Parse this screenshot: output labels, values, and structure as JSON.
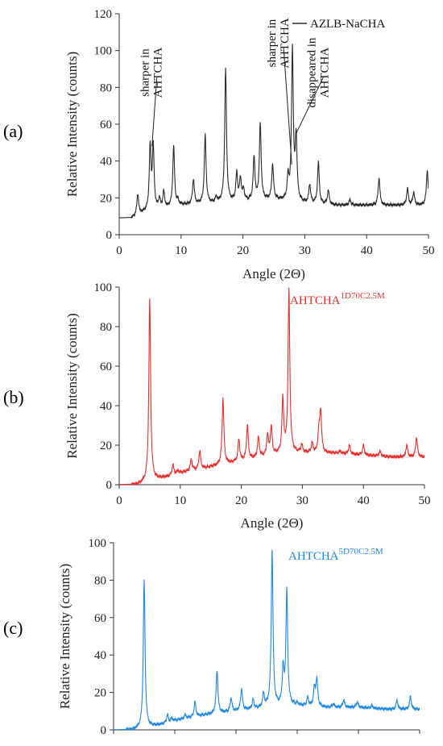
{
  "panels": [
    {
      "panel_label": "(a)",
      "color": "#2b2b2b",
      "legend_text": "AZLB-NaCHA",
      "legend_super": "",
      "legend_style": "line",
      "xlabel": "Angle (2Θ)",
      "ylabel": "Relative Intensity (counts)",
      "show_xticks": true,
      "annotations": [
        {
          "lines": [
            "sharper in",
            "AHTCHA"
          ],
          "x": 5.3,
          "y": 88,
          "target": [
            5.3,
            48
          ]
        },
        {
          "lines": [
            "sharper in",
            "AHTCHA"
          ],
          "x": 25.8,
          "y": 104,
          "target": [
            27.9,
            38
          ]
        },
        {
          "lines": [
            "disappeared in",
            "AHTCHA"
          ],
          "x": 32.2,
          "y": 88,
          "target": [
            28.6,
            55
          ]
        }
      ]
    },
    {
      "panel_label": "(b)",
      "color": "#ee2a2a",
      "legend_text": "AHTCHA",
      "legend_super": "1D70C2.5M",
      "legend_style": "text",
      "xlabel": "Angle (2Θ)",
      "ylabel": "Relative Intensity (counts)",
      "show_xticks": true,
      "annotations": []
    },
    {
      "panel_label": "(c)",
      "color": "#1e88e5",
      "legend_text": "AHTCHA",
      "legend_super": "5D70C2.5M",
      "legend_style": "text",
      "xlabel": "",
      "ylabel": "Relative Intensity (counts)",
      "show_xticks": false,
      "annotations": []
    }
  ],
  "chart_data": [
    {
      "type": "line",
      "title": "",
      "xlabel": "Angle (2Θ)",
      "ylabel": "Relative Intensity (counts)",
      "xlim": [
        0,
        50
      ],
      "ylim": [
        0,
        120
      ],
      "xticks": [
        0,
        10,
        20,
        30,
        40,
        50
      ],
      "yticks": [
        0,
        20,
        40,
        60,
        80,
        100,
        120
      ],
      "grid": false,
      "legend": "top-right",
      "series": [
        {
          "name": "AZLB-NaCHA",
          "baseline": [
            [
              0,
              9
            ],
            [
              2,
              9
            ],
            [
              4,
              12
            ],
            [
              7,
              14
            ],
            [
              10,
              16
            ],
            [
              15,
              17
            ],
            [
              20,
              18
            ],
            [
              25,
              19
            ],
            [
              30,
              17
            ],
            [
              35,
              16
            ],
            [
              40,
              16
            ],
            [
              45,
              16
            ],
            [
              50,
              16
            ]
          ],
          "peaks": [
            [
              3.0,
              22
            ],
            [
              5.0,
              47
            ],
            [
              5.5,
              47
            ],
            [
              6.5,
              19
            ],
            [
              7.2,
              23
            ],
            [
              8.8,
              48
            ],
            [
              9.5,
              18
            ],
            [
              12.0,
              30
            ],
            [
              13.9,
              54
            ],
            [
              15.7,
              20
            ],
            [
              17.2,
              90
            ],
            [
              19.0,
              33
            ],
            [
              19.6,
              30
            ],
            [
              20.1,
              24
            ],
            [
              21.8,
              42
            ],
            [
              22.8,
              60
            ],
            [
              24.8,
              38
            ],
            [
              27.3,
              30
            ],
            [
              28.0,
              100
            ],
            [
              28.6,
              52
            ],
            [
              30.8,
              27
            ],
            [
              32.2,
              39
            ],
            [
              33.8,
              24
            ],
            [
              37.3,
              19
            ],
            [
              42.0,
              31
            ],
            [
              46.6,
              25
            ],
            [
              47.6,
              23
            ],
            [
              49.8,
              35
            ]
          ]
        }
      ]
    },
    {
      "type": "line",
      "title": "",
      "xlabel": "Angle (2Θ)",
      "ylabel": "Relative Intensity (counts)",
      "xlim": [
        0,
        50
      ],
      "ylim": [
        0,
        100
      ],
      "xticks": [
        0,
        10,
        20,
        30,
        40,
        50
      ],
      "yticks": [
        0,
        20,
        40,
        60,
        80,
        100
      ],
      "grid": false,
      "legend": "top-right",
      "series": [
        {
          "name": "AHTCHA 1D70C2.5M",
          "baseline": [
            [
              0,
              0
            ],
            [
              3,
              0
            ],
            [
              5,
              2
            ],
            [
              8,
              4
            ],
            [
              10,
              6
            ],
            [
              15,
              9
            ],
            [
              20,
              12
            ],
            [
              25,
              15
            ],
            [
              28,
              16
            ],
            [
              30,
              16
            ],
            [
              35,
              16
            ],
            [
              40,
              15
            ],
            [
              45,
              14
            ],
            [
              50,
              14
            ]
          ],
          "peaks": [
            [
              5.0,
              94
            ],
            [
              8.8,
              10
            ],
            [
              9.6,
              7
            ],
            [
              11.8,
              13
            ],
            [
              13.2,
              17
            ],
            [
              17.0,
              44
            ],
            [
              19.6,
              23
            ],
            [
              21.0,
              30
            ],
            [
              22.8,
              24
            ],
            [
              24.3,
              25
            ],
            [
              24.9,
              29
            ],
            [
              26.8,
              43
            ],
            [
              27.8,
              98
            ],
            [
              29.9,
              20
            ],
            [
              31.6,
              21
            ],
            [
              32.7,
              26
            ],
            [
              33.0,
              37
            ],
            [
              36.2,
              17
            ],
            [
              37.7,
              20
            ],
            [
              40.0,
              20
            ],
            [
              42.7,
              17
            ],
            [
              47.1,
              20
            ],
            [
              48.7,
              24
            ]
          ]
        }
      ]
    },
    {
      "type": "line",
      "title": "",
      "xlabel": "",
      "ylabel": "Relative Intensity (counts)",
      "xlim": [
        0,
        50
      ],
      "ylim": [
        0,
        100
      ],
      "xticks": [
        0,
        10,
        20,
        30,
        40,
        50
      ],
      "yticks": [
        0,
        20,
        40,
        60,
        80,
        100
      ],
      "grid": false,
      "legend": "top-right",
      "series": [
        {
          "name": "AHTCHA 5D70C2.5M",
          "baseline": [
            [
              0,
              0
            ],
            [
              3,
              0
            ],
            [
              5,
              1
            ],
            [
              8,
              3
            ],
            [
              10,
              5
            ],
            [
              15,
              8
            ],
            [
              20,
              10
            ],
            [
              25,
              12
            ],
            [
              28,
              13
            ],
            [
              30,
              13
            ],
            [
              35,
              12
            ],
            [
              40,
              12
            ],
            [
              45,
              11
            ],
            [
              50,
              11
            ]
          ],
          "peaks": [
            [
              5.0,
              80
            ],
            [
              8.8,
              8
            ],
            [
              9.5,
              6
            ],
            [
              11.7,
              8
            ],
            [
              13.3,
              15
            ],
            [
              16.9,
              32
            ],
            [
              19.2,
              17
            ],
            [
              20.9,
              22
            ],
            [
              22.8,
              16
            ],
            [
              24.5,
              19
            ],
            [
              25.9,
              96
            ],
            [
              27.7,
              32
            ],
            [
              28.3,
              74
            ],
            [
              30.0,
              14
            ],
            [
              31.7,
              17
            ],
            [
              32.8,
              22
            ],
            [
              33.2,
              27
            ],
            [
              35.9,
              14
            ],
            [
              37.6,
              16
            ],
            [
              39.8,
              15
            ],
            [
              42.2,
              13
            ],
            [
              46.3,
              16
            ],
            [
              48.5,
              18
            ]
          ]
        }
      ]
    }
  ]
}
